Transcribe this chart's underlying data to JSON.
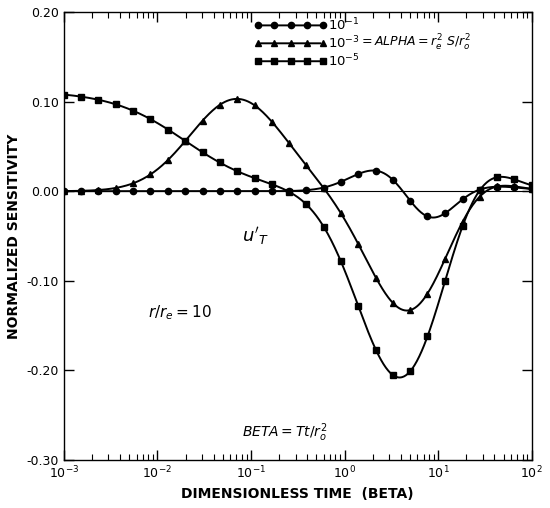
{
  "xlabel": "DIMENSIONLESS TIME  (BETA)",
  "ylabel": "NORMALIZED SENSITIVITY",
  "xlim": [
    0.001,
    100.0
  ],
  "ylim": [
    -0.3,
    0.2
  ],
  "yticks": [
    -0.3,
    -0.2,
    -0.1,
    0.0,
    0.1,
    0.2
  ],
  "background_color": "#ffffff",
  "line_color": "#000000",
  "n_markers": 28,
  "lw": 1.4,
  "ms": 4.5
}
